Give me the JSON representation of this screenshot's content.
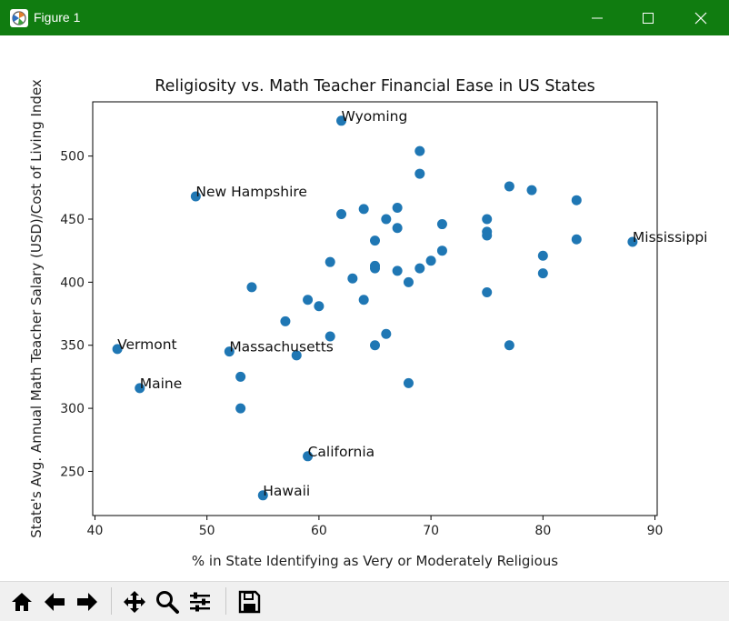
{
  "window": {
    "title": "Figure 1"
  },
  "chart_data": {
    "type": "scatter",
    "title": "Religiosity vs. Math Teacher Financial Ease in US States",
    "xlabel": "% in State Identifying as Very or Moderately Religious",
    "ylabel": "State's Avg. Annual Math Teacher Salary (USD)/Cost of Living Index",
    "xlim": [
      39.8,
      90.2
    ],
    "ylim": [
      215,
      543
    ],
    "xticks": [
      40,
      50,
      60,
      70,
      80,
      90
    ],
    "yticks": [
      250,
      300,
      350,
      400,
      450,
      500
    ],
    "grid": false,
    "marker_color": "#1f77b4",
    "points": [
      {
        "x": 62,
        "y": 528
      },
      {
        "x": 69,
        "y": 504
      },
      {
        "x": 69,
        "y": 486
      },
      {
        "x": 77,
        "y": 476
      },
      {
        "x": 79,
        "y": 473
      },
      {
        "x": 49,
        "y": 468
      },
      {
        "x": 83,
        "y": 465
      },
      {
        "x": 67,
        "y": 459
      },
      {
        "x": 64,
        "y": 458
      },
      {
        "x": 62,
        "y": 454
      },
      {
        "x": 66,
        "y": 450
      },
      {
        "x": 75,
        "y": 450
      },
      {
        "x": 71,
        "y": 446
      },
      {
        "x": 67,
        "y": 443
      },
      {
        "x": 75,
        "y": 440
      },
      {
        "x": 75,
        "y": 437
      },
      {
        "x": 83,
        "y": 434
      },
      {
        "x": 65,
        "y": 433
      },
      {
        "x": 88,
        "y": 432
      },
      {
        "x": 71,
        "y": 425
      },
      {
        "x": 80,
        "y": 421
      },
      {
        "x": 70,
        "y": 417
      },
      {
        "x": 61,
        "y": 416
      },
      {
        "x": 65,
        "y": 413
      },
      {
        "x": 65,
        "y": 411
      },
      {
        "x": 69,
        "y": 411
      },
      {
        "x": 67,
        "y": 409
      },
      {
        "x": 80,
        "y": 407
      },
      {
        "x": 63,
        "y": 403
      },
      {
        "x": 68,
        "y": 400
      },
      {
        "x": 54,
        "y": 396
      },
      {
        "x": 75,
        "y": 392
      },
      {
        "x": 59,
        "y": 386
      },
      {
        "x": 64,
        "y": 386
      },
      {
        "x": 60,
        "y": 381
      },
      {
        "x": 57,
        "y": 369
      },
      {
        "x": 66,
        "y": 359
      },
      {
        "x": 61,
        "y": 357
      },
      {
        "x": 65,
        "y": 350
      },
      {
        "x": 77,
        "y": 350
      },
      {
        "x": 42,
        "y": 347
      },
      {
        "x": 52,
        "y": 345
      },
      {
        "x": 58,
        "y": 342
      },
      {
        "x": 53,
        "y": 325
      },
      {
        "x": 68,
        "y": 320
      },
      {
        "x": 44,
        "y": 316
      },
      {
        "x": 53,
        "y": 300
      },
      {
        "x": 59,
        "y": 262
      },
      {
        "x": 55,
        "y": 231
      }
    ],
    "annotations": [
      {
        "text": "Wyoming",
        "x": 62,
        "y": 528
      },
      {
        "text": "New Hampshire",
        "x": 49,
        "y": 468
      },
      {
        "text": "Mississippi",
        "x": 88,
        "y": 432
      },
      {
        "text": "Vermont",
        "x": 42,
        "y": 347
      },
      {
        "text": "Massachusetts",
        "x": 52,
        "y": 345
      },
      {
        "text": "Maine",
        "x": 44,
        "y": 316
      },
      {
        "text": "California",
        "x": 59,
        "y": 262
      },
      {
        "text": "Hawaii",
        "x": 55,
        "y": 231
      }
    ]
  },
  "toolbar": {
    "tools": [
      {
        "name": "home-button",
        "icon": "home-icon"
      },
      {
        "name": "back-button",
        "icon": "arrow-left-icon"
      },
      {
        "name": "forward-button",
        "icon": "arrow-right-icon"
      },
      {
        "name": "pan-button",
        "icon": "move-icon"
      },
      {
        "name": "zoom-button",
        "icon": "magnifier-icon"
      },
      {
        "name": "configure-subplots-button",
        "icon": "sliders-icon"
      },
      {
        "name": "save-button",
        "icon": "floppy-disk-icon"
      }
    ]
  }
}
